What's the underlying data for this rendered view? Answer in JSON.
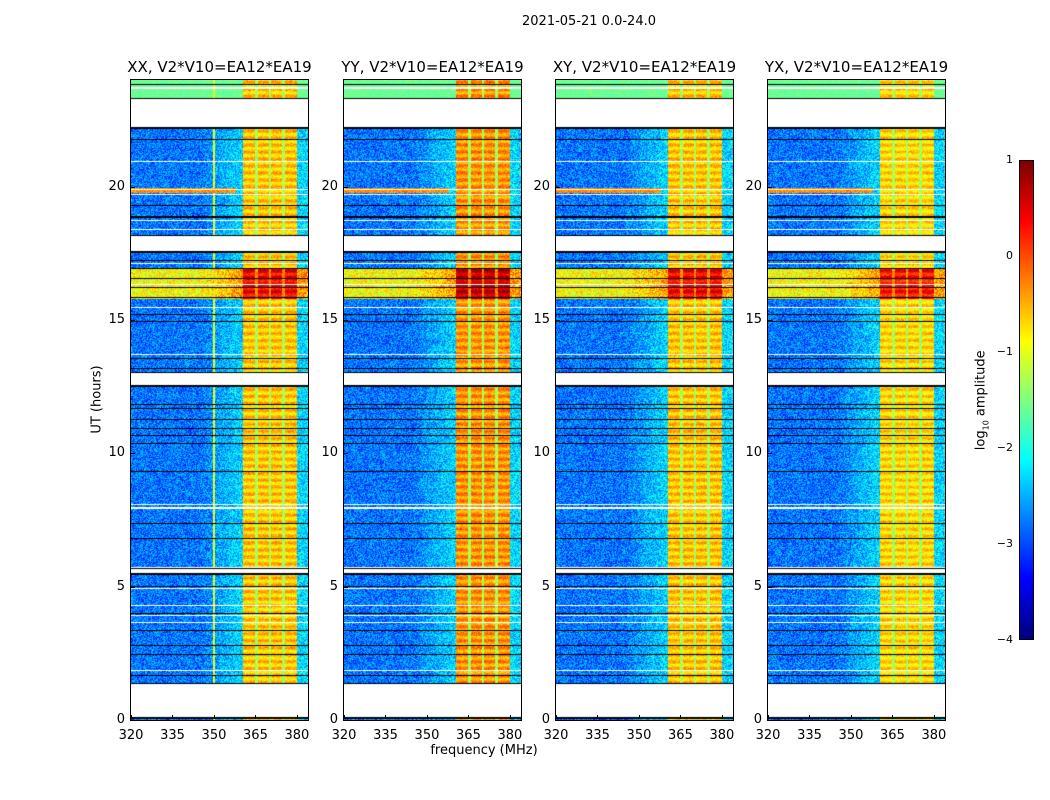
{
  "chart_data": {
    "type": "heatmap",
    "title": "2021-05-21 0.0-24.0",
    "xlabel": "frequency (MHz)",
    "ylabel": "UT (hours)",
    "xlim": [
      320,
      384
    ],
    "ylim": [
      0,
      24
    ],
    "xticks": [
      "320",
      "335",
      "350",
      "365",
      "380"
    ],
    "xtick_values": [
      320,
      335,
      350,
      365,
      380
    ],
    "yticks": [
      "0",
      "5",
      "10",
      "15",
      "20"
    ],
    "ytick_values": [
      0,
      5,
      10,
      15,
      20
    ],
    "panels": [
      {
        "title": "XX, V2*V10=EA12*EA19",
        "band_boost": 0.0
      },
      {
        "title": "YY, V2*V10=EA12*EA19",
        "band_boost": 0.25
      },
      {
        "title": "XY, V2*V10=EA12*EA19",
        "band_boost": 0.0
      },
      {
        "title": "YX, V2*V10=EA12*EA19",
        "band_boost": -0.1
      }
    ],
    "flagged_hours": [
      [
        0.1,
        1.35
      ],
      [
        5.5,
        5.68
      ],
      [
        12.55,
        13.0
      ],
      [
        17.6,
        18.15
      ],
      [
        22.25,
        23.3
      ]
    ],
    "rfi_band_mhz": [
      360.5,
      380
    ],
    "rfi_band_gaps_mhz": [
      365.3,
      370.3,
      375.2
    ],
    "background_log_amp": -2.8,
    "band_log_amp": -0.6,
    "strong_interference_hours": [
      15.8,
      16.9
    ],
    "narrowband_stripe": {
      "hour": 19.85,
      "max_mhz": 358,
      "log_amp": 0.0
    },
    "colorbar": {
      "label_prefix": "log",
      "label_sub": "10",
      "label_suffix": " amplitude",
      "range": [
        -4,
        1
      ],
      "ticks": [
        "1",
        "0",
        "−1",
        "−2",
        "−3",
        "−4"
      ],
      "tick_values": [
        1,
        0,
        -1,
        -2,
        -3,
        -4
      ],
      "colormap": "jet"
    }
  }
}
